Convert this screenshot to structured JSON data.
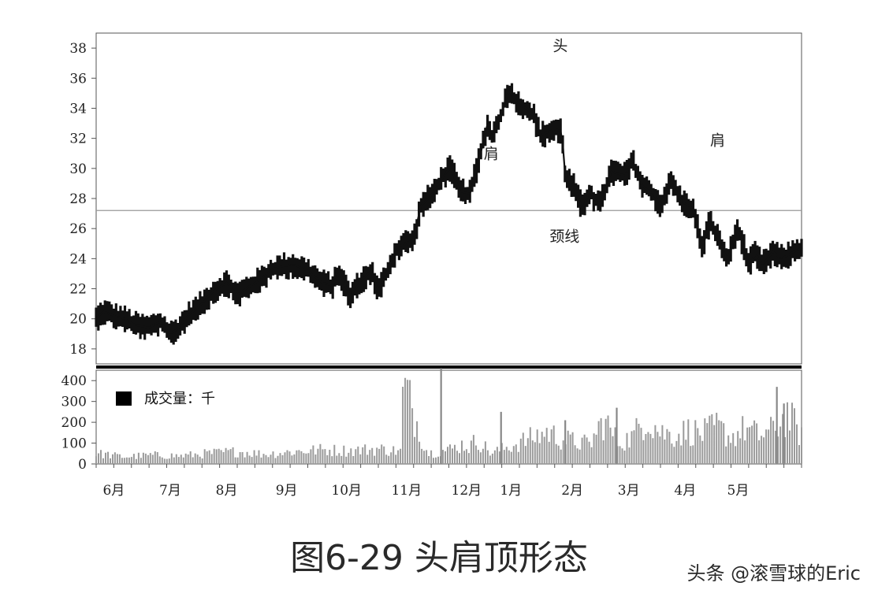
{
  "caption": "图6-29 头肩顶形态",
  "watermark": "头条 @滚雪球的Eric",
  "chart_data": [
    {
      "type": "line",
      "xlabels": [
        "6月",
        "7月",
        "8月",
        "9月",
        "10月",
        "11月",
        "12月",
        "1月",
        "2月",
        "3月",
        "4月",
        "5月"
      ],
      "ylim": [
        17,
        39
      ],
      "yticks": [
        18,
        20,
        22,
        24,
        26,
        28,
        30,
        32,
        34,
        36,
        38
      ],
      "neckline": 27.2,
      "annotations": [
        {
          "text": "肩",
          "t": 0.56,
          "y": 31.0
        },
        {
          "text": "头",
          "t": 0.658,
          "y": 38.2
        },
        {
          "text": "肩",
          "t": 0.881,
          "y": 31.9
        },
        {
          "text": "颈线",
          "t": 0.664,
          "y": 25.5
        }
      ],
      "price_series": {
        "t": [
          0.0,
          0.01,
          0.025,
          0.04,
          0.055,
          0.075,
          0.09,
          0.105,
          0.115,
          0.13,
          0.15,
          0.165,
          0.185,
          0.2,
          0.215,
          0.23,
          0.25,
          0.265,
          0.28,
          0.3,
          0.32,
          0.335,
          0.345,
          0.36,
          0.375,
          0.39,
          0.4,
          0.415,
          0.425,
          0.435,
          0.45,
          0.46,
          0.475,
          0.49,
          0.5,
          0.505,
          0.515,
          0.53,
          0.545,
          0.555,
          0.56,
          0.57,
          0.585,
          0.6,
          0.61,
          0.62,
          0.63,
          0.65,
          0.66,
          0.665,
          0.678,
          0.69,
          0.7,
          0.705,
          0.715,
          0.73,
          0.75,
          0.76,
          0.775,
          0.79,
          0.8,
          0.815,
          0.83,
          0.845,
          0.86,
          0.87,
          0.885,
          0.895,
          0.91,
          0.925,
          0.935,
          0.945,
          0.96,
          0.97,
          0.98,
          0.99,
          1.0
        ],
        "y": [
          20.0,
          20.5,
          20.2,
          20.0,
          19.6,
          19.4,
          19.8,
          19.0,
          19.3,
          20.2,
          21.0,
          21.8,
          22.4,
          21.6,
          22.1,
          22.5,
          23.3,
          23.5,
          23.6,
          23.2,
          22.4,
          22.2,
          23.1,
          21.5,
          22.5,
          23.2,
          21.8,
          23.4,
          24.5,
          25.0,
          25.2,
          27.5,
          28.2,
          29.3,
          30.0,
          29.8,
          28.5,
          28.3,
          31.0,
          33.0,
          32.0,
          33.0,
          35.2,
          34.2,
          34.0,
          33.5,
          32.2,
          32.6,
          32.5,
          29.5,
          28.7,
          27.3,
          28.6,
          28.0,
          27.6,
          29.8,
          29.5,
          30.5,
          28.8,
          28.3,
          27.6,
          29.1,
          27.8,
          27.4,
          24.8,
          26.5,
          25.0,
          23.9,
          26.1,
          23.7,
          24.3,
          23.6,
          24.5,
          24.0,
          24.2,
          24.5,
          24.7
        ]
      },
      "y_axis_title": "",
      "x_axis_title": ""
    },
    {
      "type": "bar",
      "legend": "成交量：千",
      "ylim": [
        0,
        450
      ],
      "yticks": [
        0,
        100,
        200,
        300,
        400
      ],
      "volume_series": {
        "t": [
          0.0,
          0.04,
          0.08,
          0.12,
          0.16,
          0.2,
          0.24,
          0.28,
          0.32,
          0.36,
          0.4,
          0.434,
          0.435,
          0.47,
          0.5,
          0.52,
          0.53,
          0.54,
          0.56,
          0.6,
          0.64,
          0.66,
          0.7,
          0.72,
          0.74,
          0.76,
          0.78,
          0.8,
          0.82,
          0.84,
          0.86,
          0.88,
          0.9,
          0.92,
          0.94,
          0.96,
          0.98,
          1.0
        ],
        "y": [
          60,
          40,
          50,
          45,
          60,
          70,
          55,
          70,
          80,
          75,
          85,
          70,
          460,
          60,
          80,
          110,
          95,
          140,
          60,
          120,
          180,
          140,
          110,
          250,
          120,
          150,
          270,
          180,
          160,
          190,
          170,
          210,
          150,
          200,
          160,
          190,
          280,
          160
        ]
      }
    }
  ]
}
